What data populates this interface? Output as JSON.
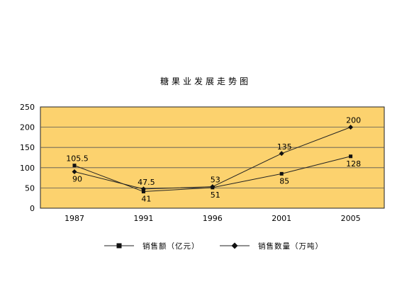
{
  "chart_data": {
    "type": "line",
    "title": "糖果业发展走势图",
    "xlabel": "",
    "ylabel": "",
    "categories": [
      "1987",
      "1991",
      "1996",
      "2001",
      "2005"
    ],
    "ylim": [
      0,
      250
    ],
    "yticks": [
      "0",
      "50",
      "100",
      "150",
      "200",
      "250"
    ],
    "grid": true,
    "legend_position": "bottom",
    "plot_background": "#FCD26E",
    "series": [
      {
        "name": "销售额（亿元）",
        "marker": "square",
        "values": [
          105.5,
          41,
          51,
          85,
          128
        ],
        "labels": [
          "105.5",
          "41",
          "51",
          "85",
          "128"
        ],
        "label_position": [
          "above",
          "below",
          "below",
          "below",
          "below"
        ]
      },
      {
        "name": "销售数量（万吨）",
        "marker": "diamond",
        "values": [
          90,
          47.5,
          53,
          135,
          200
        ],
        "labels": [
          "90",
          "47.5",
          "53",
          "135",
          "200"
        ],
        "label_position": [
          "below",
          "above",
          "above",
          "above",
          "above"
        ]
      }
    ]
  }
}
